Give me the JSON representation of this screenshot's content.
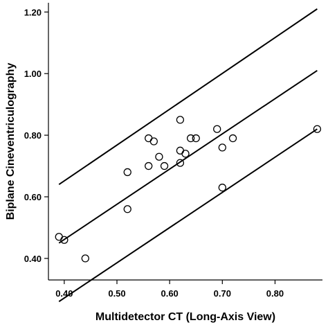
{
  "chart_data": {
    "type": "scatter",
    "title": "",
    "xlabel": "Multidetector CT (Long-Axis View)",
    "ylabel": "Biplane Cineventriculography",
    "xlim": [
      0.37,
      0.89
    ],
    "ylim": [
      0.33,
      1.23
    ],
    "x_ticks": [
      "0.40",
      "0.50",
      "0.60",
      "0.70",
      "0.80"
    ],
    "y_ticks": [
      "0.40",
      "0.60",
      "0.80",
      "1.00",
      "1.20"
    ],
    "grid": false,
    "legend": "none",
    "points": [
      {
        "x": 0.39,
        "y": 0.47
      },
      {
        "x": 0.4,
        "y": 0.46
      },
      {
        "x": 0.44,
        "y": 0.4
      },
      {
        "x": 0.52,
        "y": 0.56
      },
      {
        "x": 0.52,
        "y": 0.68
      },
      {
        "x": 0.56,
        "y": 0.7
      },
      {
        "x": 0.56,
        "y": 0.79
      },
      {
        "x": 0.57,
        "y": 0.78
      },
      {
        "x": 0.58,
        "y": 0.73
      },
      {
        "x": 0.59,
        "y": 0.7
      },
      {
        "x": 0.62,
        "y": 0.85
      },
      {
        "x": 0.62,
        "y": 0.75
      },
      {
        "x": 0.62,
        "y": 0.71
      },
      {
        "x": 0.63,
        "y": 0.74
      },
      {
        "x": 0.64,
        "y": 0.79
      },
      {
        "x": 0.65,
        "y": 0.79
      },
      {
        "x": 0.69,
        "y": 0.82
      },
      {
        "x": 0.7,
        "y": 0.76
      },
      {
        "x": 0.7,
        "y": 0.63
      },
      {
        "x": 0.72,
        "y": 0.79
      },
      {
        "x": 0.88,
        "y": 0.82
      }
    ],
    "lines": [
      {
        "x": [
          0.39,
          0.88
        ],
        "y": [
          0.64,
          1.21
        ]
      },
      {
        "x": [
          0.39,
          0.88
        ],
        "y": [
          0.45,
          1.01
        ]
      },
      {
        "x": [
          0.39,
          0.88
        ],
        "y": [
          0.26,
          0.82
        ]
      }
    ],
    "colors": {
      "ink": "#000000",
      "background": "#ffffff"
    }
  }
}
